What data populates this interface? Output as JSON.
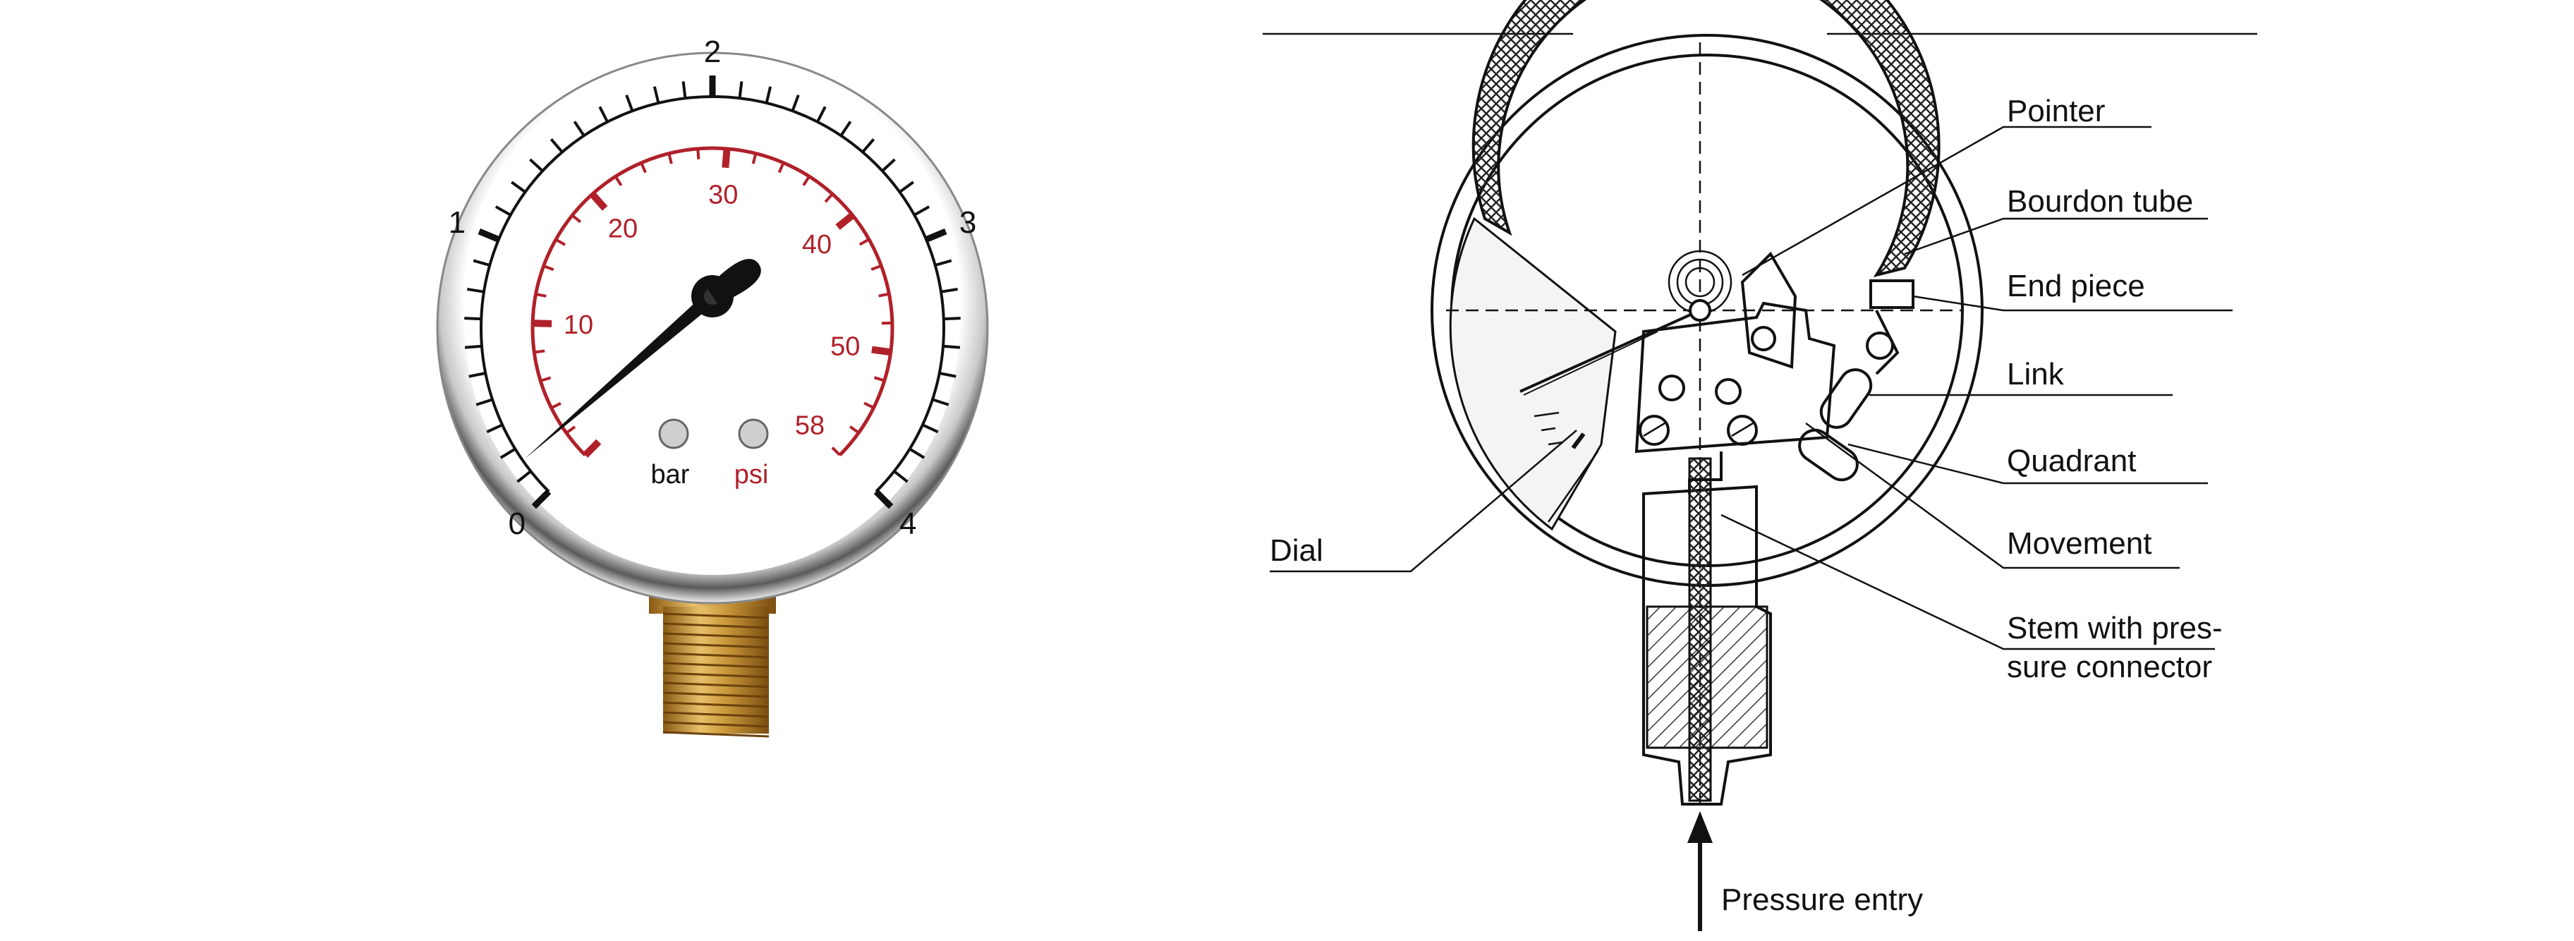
{
  "gauge_photo": {
    "bar_scale": [
      "0",
      "1",
      "2",
      "3",
      "4"
    ],
    "psi_scale": [
      "10",
      "20",
      "30",
      "40",
      "50",
      "58"
    ],
    "unit_bar": "bar",
    "unit_psi": "psi",
    "pointer_reading_bar": 0.15,
    "colors": {
      "psi_red": "#b0212a",
      "brass": "#c9973a",
      "ink": "#111111"
    }
  },
  "cutaway_diagram": {
    "labels": {
      "pointer": "Pointer",
      "bourdon_tube": "Bourdon tube",
      "end_piece": "End piece",
      "link": "Link",
      "quadrant": "Quadrant",
      "movement": "Movement",
      "dial": "Dial",
      "stem_line1": "Stem with pres-",
      "stem_line2": "sure connector",
      "pressure_entry": "Pressure entry"
    }
  }
}
